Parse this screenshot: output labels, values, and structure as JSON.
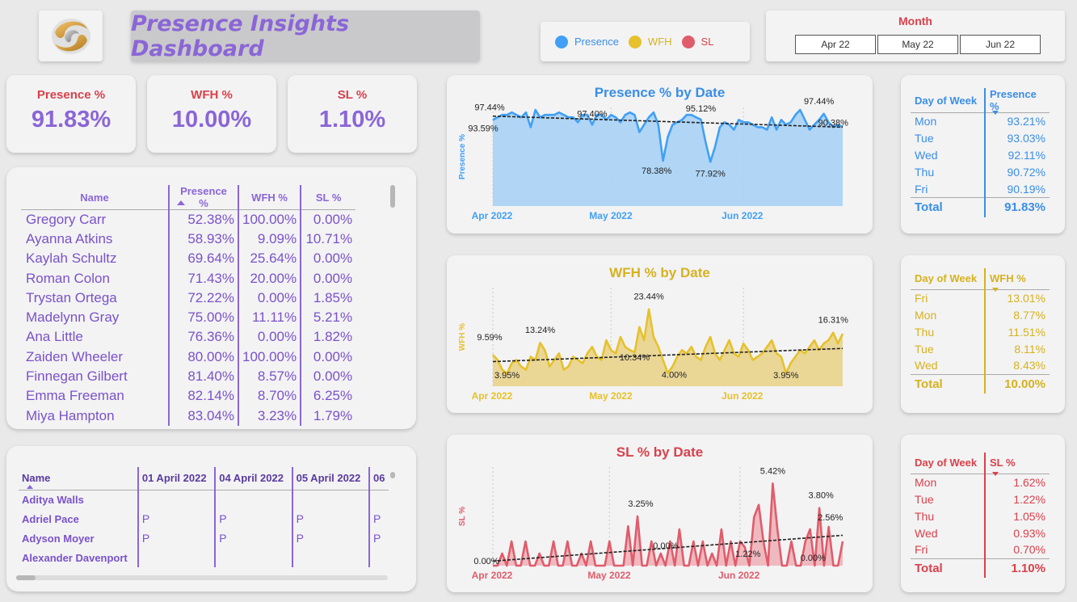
{
  "header": {
    "title": "Presence Insights Dashboard",
    "legend": [
      {
        "label": "Presence",
        "color": "#41a0f5"
      },
      {
        "label": "WFH",
        "color": "#e6c12c"
      },
      {
        "label": "SL",
        "color": "#e05c6a"
      }
    ],
    "month_filter": {
      "label": "Month",
      "options": [
        "Apr 22",
        "May 22",
        "Jun 22"
      ]
    }
  },
  "kpis": {
    "presence": {
      "label": "Presence %",
      "value": "91.83%"
    },
    "wfh": {
      "label": "WFH %",
      "value": "10.00%"
    },
    "sl": {
      "label": "SL %",
      "value": "1.10%"
    }
  },
  "people_table": {
    "columns": [
      "Name",
      "Presence %",
      "WFH %",
      "SL %"
    ],
    "rows": [
      [
        "Gregory Carr",
        "52.38%",
        "100.00%",
        "0.00%"
      ],
      [
        "Ayanna Atkins",
        "58.93%",
        "9.09%",
        "10.71%"
      ],
      [
        "Kaylah Schultz",
        "69.64%",
        "25.64%",
        "0.00%"
      ],
      [
        "Roman Colon",
        "71.43%",
        "20.00%",
        "0.00%"
      ],
      [
        "Trystan Ortega",
        "72.22%",
        "0.00%",
        "1.85%"
      ],
      [
        "Madelynn Gray",
        "75.00%",
        "11.11%",
        "5.21%"
      ],
      [
        "Ana Little",
        "76.36%",
        "0.00%",
        "1.82%"
      ],
      [
        "Zaiden Wheeler",
        "80.00%",
        "100.00%",
        "0.00%"
      ],
      [
        "Finnegan Gilbert",
        "81.40%",
        "8.57%",
        "0.00%"
      ],
      [
        "Emma Freeman",
        "82.14%",
        "8.70%",
        "6.25%"
      ],
      [
        "Miya Hampton",
        "83.04%",
        "3.23%",
        "1.79%"
      ]
    ]
  },
  "attendance_table": {
    "columns": [
      "Name",
      "01 April 2022",
      "04 April 2022",
      "05 April 2022",
      "06"
    ],
    "rows": [
      [
        "Aditya Walls",
        "",
        "",
        "",
        ""
      ],
      [
        "Adriel Pace",
        "P",
        "P",
        "P",
        "P"
      ],
      [
        "Adyson Moyer",
        "P",
        "P",
        "P",
        "P"
      ],
      [
        "Alexander Davenport",
        "",
        "",
        "",
        ""
      ]
    ]
  },
  "chart_data": [
    {
      "type": "area",
      "title": "Presence % by Date",
      "ylabel": "Presence %",
      "color": "#41a0f5",
      "fill": "#a9d1f5",
      "x_ticks": [
        "Apr 2022",
        "May 2022",
        "Jun 2022"
      ],
      "ylim": [
        60,
        100
      ],
      "values": [
        95,
        96,
        97,
        97,
        98,
        97,
        96,
        98,
        92,
        99,
        96,
        97,
        97,
        97,
        98,
        97,
        96,
        96,
        94,
        97,
        97,
        93,
        97,
        97,
        95,
        97,
        96,
        94,
        97,
        98,
        97,
        90,
        93,
        96,
        98,
        93,
        78.38,
        88,
        93,
        94,
        95,
        97,
        97,
        96,
        95.12,
        86,
        77.92,
        84,
        92,
        94,
        93,
        91,
        95,
        94,
        94,
        93,
        92,
        92,
        91,
        96,
        91,
        95,
        93,
        94,
        97,
        99,
        95,
        91,
        93,
        95,
        97.44,
        94,
        92,
        93,
        92
      ],
      "annotations": [
        "97.44%",
        "93.59%",
        "97.40%",
        "95.12%",
        "78.38%",
        "77.92%",
        "97.44%",
        "90.38%"
      ],
      "trend": [
        96.5,
        92.0
      ]
    },
    {
      "type": "area",
      "title": "WFH % by Date",
      "ylabel": "WFH %",
      "color": "#e6c12c",
      "fill": "#e9d48c",
      "x_ticks": [
        "Apr 2022",
        "May 2022",
        "Jun 2022"
      ],
      "ylim": [
        0,
        30
      ],
      "values": [
        9.59,
        8,
        5,
        3.95,
        7,
        8,
        6,
        5,
        9,
        8,
        13.24,
        11,
        6,
        8,
        10,
        5,
        6,
        9,
        8,
        7,
        10,
        12,
        9,
        8,
        14,
        11,
        10,
        15,
        12,
        11,
        10.34,
        18,
        14,
        23.44,
        15,
        12,
        8,
        4.0,
        6,
        9,
        11,
        10,
        12,
        9,
        8,
        12,
        15,
        10,
        8,
        11,
        14,
        10,
        9,
        13,
        11,
        8,
        9,
        10,
        12,
        14,
        10,
        9,
        3.95,
        7,
        9,
        11,
        10,
        12,
        14,
        11,
        13,
        14,
        16.31,
        13,
        16
      ],
      "annotations": [
        "9.59%",
        "3.95%",
        "13.24%",
        "10.34%",
        "23.44%",
        "4.00%",
        "3.95%",
        "16.31%"
      ],
      "trend": [
        7.5,
        11.5
      ]
    },
    {
      "type": "area",
      "title": "SL % by Date",
      "ylabel": "SL %",
      "color": "#e05c6a",
      "fill": "#eeb3ba",
      "x_ticks": [
        "Apr 2022",
        "May 2022",
        "Jun 2022"
      ],
      "ylim": [
        0,
        6.5
      ],
      "values": [
        0,
        0,
        0.8,
        0,
        1.6,
        0,
        0,
        1.6,
        0,
        0,
        0.8,
        0,
        0,
        1.6,
        0,
        0,
        1.6,
        0,
        0,
        0.8,
        0,
        1.6,
        0,
        0,
        0,
        1.6,
        0,
        0,
        0,
        2.6,
        0,
        3.25,
        0,
        0,
        1.6,
        0,
        0.8,
        0,
        1.6,
        0,
        2.4,
        0,
        0,
        1.6,
        0,
        1.6,
        0,
        0.8,
        0,
        2.4,
        0,
        1.6,
        0,
        1.6,
        1.22,
        0,
        3.2,
        4.0,
        1.6,
        0,
        5.42,
        2.4,
        0,
        0,
        1.6,
        0,
        0,
        1.6,
        2.4,
        0,
        3.8,
        0,
        2.56,
        0,
        0,
        1.6
      ],
      "annotations": [
        "0.00%",
        "3.25%",
        "0.00%",
        "1.22%",
        "5.42%",
        "0.00%",
        "3.80%",
        "2.56%"
      ],
      "trend": [
        0.3,
        2.0
      ]
    }
  ],
  "dow_tables": {
    "presence": {
      "headers": [
        "Day of Week",
        "Presence %"
      ],
      "color": "#3a8ee6",
      "rows": [
        [
          "Mon",
          "93.21%"
        ],
        [
          "Tue",
          "93.03%"
        ],
        [
          "Wed",
          "92.11%"
        ],
        [
          "Thu",
          "90.72%"
        ],
        [
          "Fri",
          "90.19%"
        ]
      ],
      "total": [
        "Total",
        "91.83%"
      ]
    },
    "wfh": {
      "headers": [
        "Day of Week",
        "WFH %"
      ],
      "color": "#d6b21e",
      "rows": [
        [
          "Fri",
          "13.01%"
        ],
        [
          "Mon",
          "8.77%"
        ],
        [
          "Thu",
          "11.51%"
        ],
        [
          "Tue",
          "8.11%"
        ],
        [
          "Wed",
          "8.43%"
        ]
      ],
      "total": [
        "Total",
        "10.00%"
      ]
    },
    "sl": {
      "headers": [
        "Day of Week",
        "SL %"
      ],
      "color": "#d9414a",
      "rows": [
        [
          "Mon",
          "1.62%"
        ],
        [
          "Tue",
          "1.22%"
        ],
        [
          "Thu",
          "1.05%"
        ],
        [
          "Wed",
          "0.93%"
        ],
        [
          "Fri",
          "0.70%"
        ]
      ],
      "total": [
        "Total",
        "1.10%"
      ]
    }
  }
}
